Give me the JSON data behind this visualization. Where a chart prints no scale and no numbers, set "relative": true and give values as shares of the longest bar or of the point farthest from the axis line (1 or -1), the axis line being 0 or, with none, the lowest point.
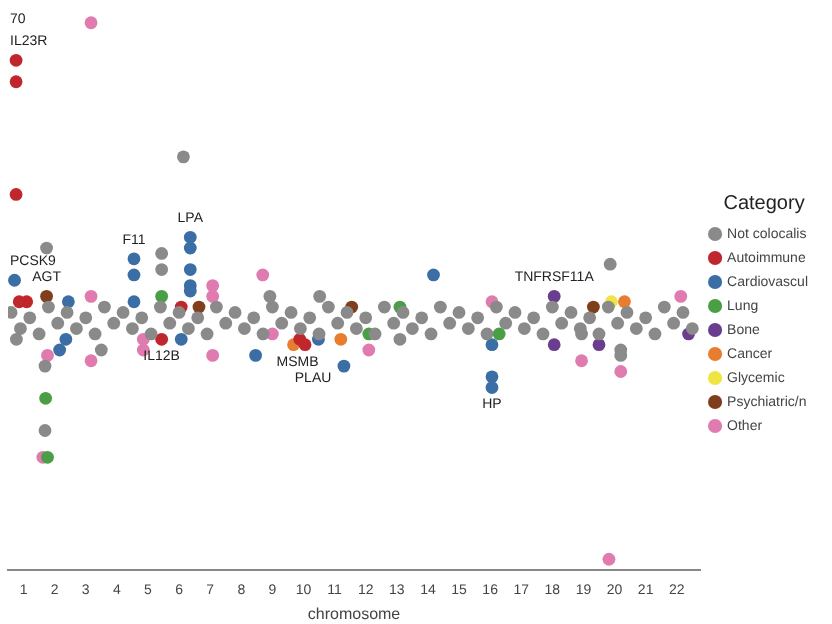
{
  "chart_data": {
    "type": "scatter",
    "relative": true,
    "xlabel": "chromosome",
    "legend_title": "Category",
    "legend": "right",
    "marker": "circle",
    "grid": false,
    "tick_labels": "x",
    "xlim": [
      0.5,
      22.75
    ],
    "xticks": [
      1,
      2,
      3,
      4,
      5,
      6,
      7,
      8,
      9,
      10,
      11,
      12,
      13,
      14,
      15,
      16,
      17,
      18,
      19,
      20,
      21,
      22
    ],
    "series": [
      {
        "name": "Not colocalis",
        "color": "#8a8a8a",
        "x": [
          0.6,
          0.9,
          1.2,
          1.5,
          1.8,
          2.1,
          2.4,
          2.7,
          3.0,
          3.3,
          3.6,
          3.9,
          4.2,
          4.5,
          4.8,
          5.1,
          5.4,
          5.7,
          6.0,
          6.3,
          6.6,
          6.9,
          7.2,
          7.5,
          7.8,
          8.1,
          8.4,
          8.7,
          9.0,
          9.3,
          9.6,
          9.9,
          10.2,
          10.5,
          10.8,
          11.1,
          11.4,
          11.7,
          12.0,
          12.3,
          12.6,
          12.9,
          13.2,
          13.5,
          13.8,
          14.1,
          14.4,
          14.7,
          15.0,
          15.3,
          15.6,
          15.9,
          16.2,
          16.5,
          16.8,
          17.1,
          17.4,
          17.7,
          18.0,
          18.3,
          18.6,
          18.9,
          19.2,
          19.5,
          19.8,
          20.1,
          20.4,
          20.7,
          21.0,
          21.3,
          21.6,
          21.9,
          22.2,
          22.5,
          6.14,
          1.74,
          5.44,
          5.44,
          1.69,
          1.69,
          3.5,
          19.86,
          20.2,
          20.2,
          13.1,
          18.94,
          10.52,
          8.92,
          0.77
        ],
        "values": [
          0.46,
          0.43,
          0.45,
          0.42,
          0.47,
          0.44,
          0.46,
          0.43,
          0.45,
          0.42,
          0.47,
          0.44,
          0.46,
          0.43,
          0.45,
          0.42,
          0.47,
          0.44,
          0.46,
          0.43,
          0.45,
          0.42,
          0.47,
          0.44,
          0.46,
          0.43,
          0.45,
          0.42,
          0.47,
          0.44,
          0.46,
          0.43,
          0.45,
          0.42,
          0.47,
          0.44,
          0.46,
          0.43,
          0.45,
          0.42,
          0.47,
          0.44,
          0.46,
          0.43,
          0.45,
          0.42,
          0.47,
          0.44,
          0.46,
          0.43,
          0.45,
          0.42,
          0.47,
          0.44,
          0.46,
          0.43,
          0.45,
          0.42,
          0.47,
          0.44,
          0.46,
          0.43,
          0.45,
          0.42,
          0.47,
          0.44,
          0.46,
          0.43,
          0.45,
          0.42,
          0.47,
          0.44,
          0.46,
          0.43,
          0.75,
          0.58,
          0.57,
          0.54,
          0.36,
          0.24,
          0.39,
          0.55,
          0.39,
          0.38,
          0.41,
          0.42,
          0.49,
          0.49,
          0.41
        ]
      },
      {
        "name": "Autoimmune",
        "color": "#c0272d",
        "x": [
          0.76,
          0.76,
          0.76,
          0.86,
          1.1,
          6.07,
          5.44,
          10.05,
          9.88
        ],
        "values": [
          0.93,
          0.89,
          0.68,
          0.48,
          0.48,
          0.47,
          0.41,
          0.4,
          0.41
        ]
      },
      {
        "name": "Cardiovascul",
        "color": "#3a6ea5",
        "x": [
          0.71,
          4.55,
          4.55,
          4.55,
          6.36,
          6.36,
          6.36,
          6.36,
          6.36,
          2.44,
          14.18,
          16.06,
          16.06,
          16.06,
          11.3,
          2.16,
          2.36,
          6.07,
          8.46,
          10.48
        ],
        "values": [
          0.52,
          0.56,
          0.53,
          0.48,
          0.6,
          0.58,
          0.54,
          0.51,
          0.5,
          0.48,
          0.53,
          0.34,
          0.32,
          0.4,
          0.36,
          0.39,
          0.41,
          0.41,
          0.38,
          0.41
        ]
      },
      {
        "name": "Lung",
        "color": "#4a9e45",
        "x": [
          1.71,
          1.77,
          5.44,
          16.29,
          13.1,
          12.1
        ],
        "values": [
          0.3,
          0.19,
          0.49,
          0.42,
          0.47,
          0.42
        ]
      },
      {
        "name": "Bone",
        "color": "#6a3d8f",
        "x": [
          18.06,
          18.06,
          19.5,
          22.38
        ],
        "values": [
          0.49,
          0.4,
          0.4,
          0.42
        ]
      },
      {
        "name": "Cancer",
        "color": "#e87d2f",
        "x": [
          9.68,
          11.2,
          20.32
        ],
        "values": [
          0.4,
          0.41,
          0.48
        ]
      },
      {
        "name": "Glycemic",
        "color": "#f0e442",
        "x": [
          19.9
        ],
        "values": [
          0.48
        ]
      },
      {
        "name": "Psychiatric/n",
        "color": "#7f3f1c",
        "x": [
          1.74,
          11.55,
          6.64,
          19.32
        ],
        "values": [
          0.49,
          0.47,
          0.47,
          0.47
        ]
      },
      {
        "name": "Other",
        "color": "#e07bb0",
        "x": [
          3.17,
          19.82,
          1.62,
          1.77,
          3.17,
          3.17,
          4.85,
          4.85,
          7.08,
          7.08,
          7.08,
          8.69,
          9,
          12.1,
          16.06,
          18.94,
          20.2,
          22.13
        ],
        "values": [
          1,
          0,
          0.19,
          0.38,
          0.37,
          0.49,
          0.41,
          0.39,
          0.38,
          0.51,
          0.49,
          0.53,
          0.42,
          0.39,
          0.48,
          0.37,
          0.35,
          0.49
        ]
      }
    ],
    "annotations": [
      "70",
      {
        "text": "IL23R",
        "x": 0.76,
        "y": 0.93
      },
      {
        "text": "PCSK9",
        "x": 0.71,
        "y": 0.52
      },
      {
        "text": "AGT",
        "x": 1.74,
        "y": 0.49
      },
      {
        "text": "F11",
        "x": 4.55,
        "y": 0.56
      },
      {
        "text": "LPA",
        "x": 6.36,
        "y": 0.6
      },
      {
        "text": "IL12B",
        "x": 5.44,
        "y": 0.41
      },
      {
        "text": "MSMB",
        "x": 9.81,
        "y": 0.4
      },
      {
        "text": "PLAU",
        "x": 10.05,
        "y": 0.4
      },
      {
        "text": "HP",
        "x": 16.06,
        "y": 0.32
      },
      {
        "text": "TNFRSF11A",
        "x": 18.06,
        "y": 0.49
      }
    ]
  }
}
